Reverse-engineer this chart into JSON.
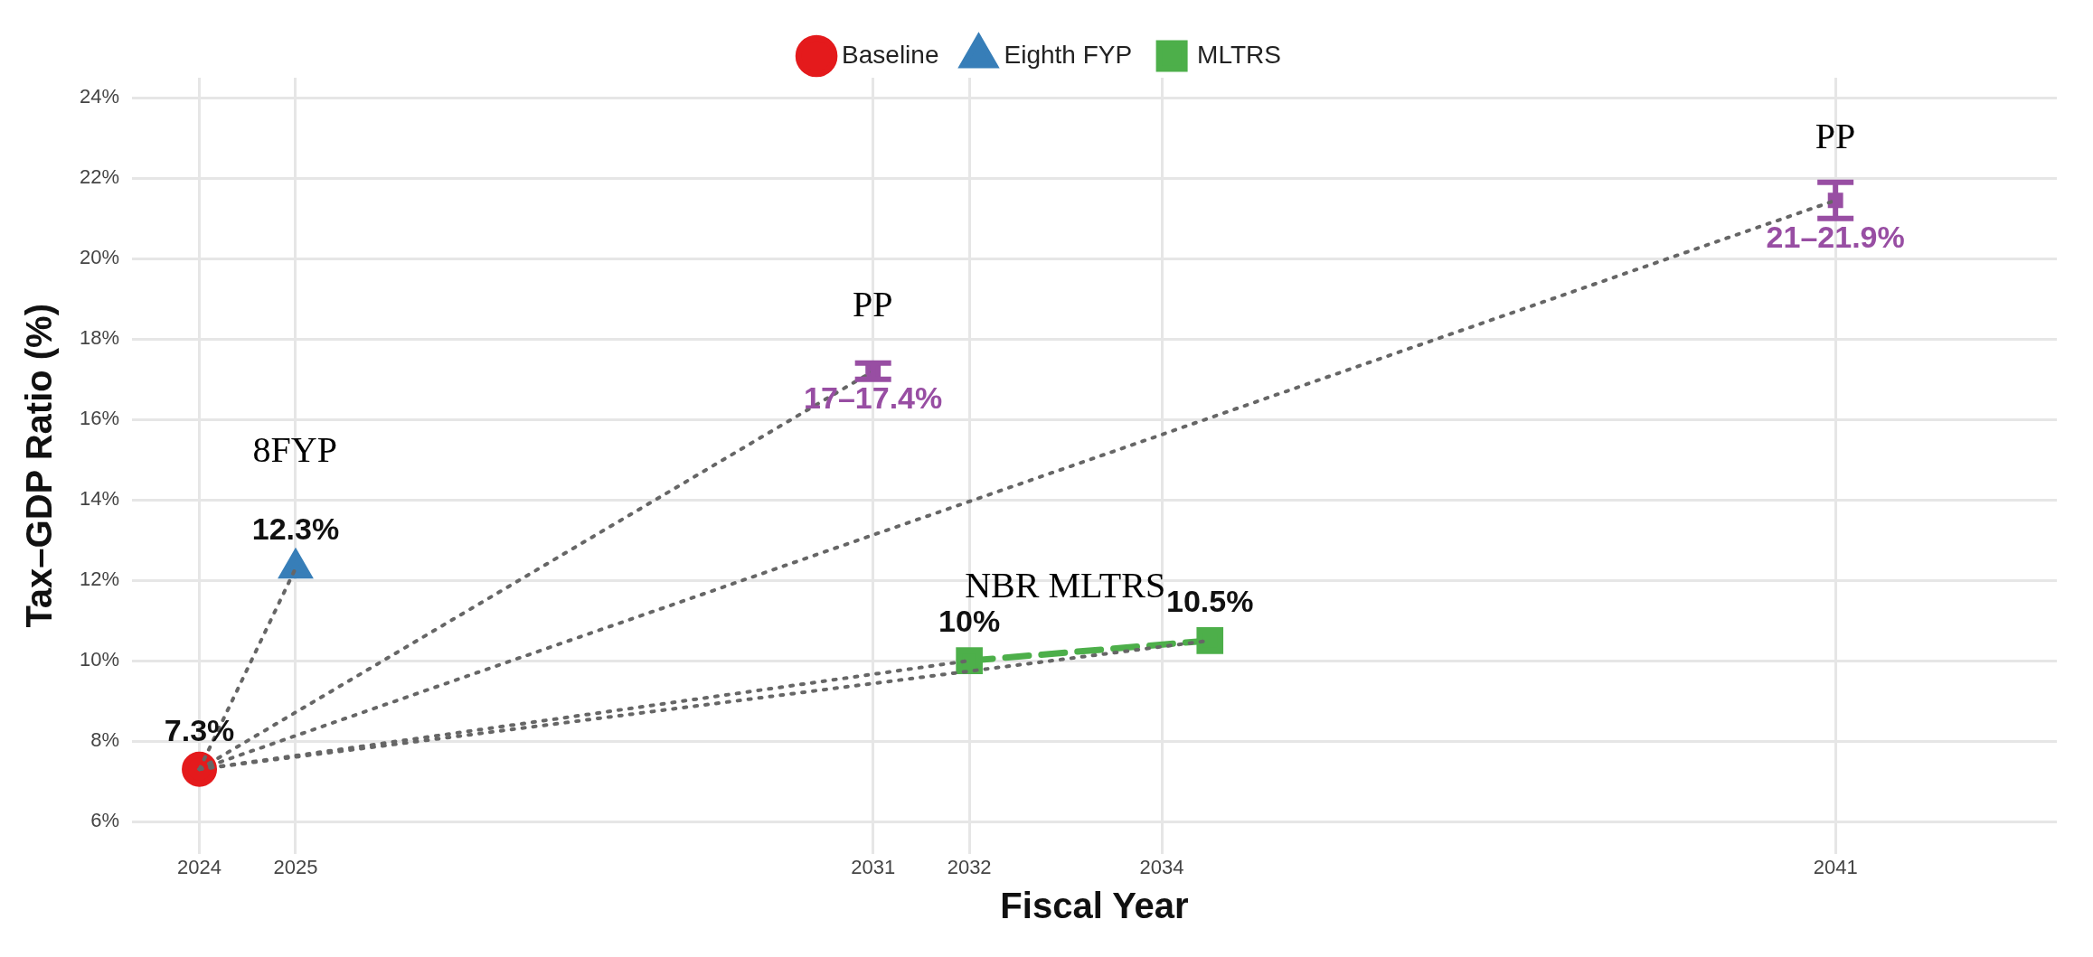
{
  "chart_data": {
    "type": "scatter",
    "xlabel": "Fiscal Year",
    "ylabel": "Tax–GDP Ratio (%)",
    "xlim": [
      2023.3,
      2043.3
    ],
    "xticks": [
      2024,
      2025,
      2031,
      2032,
      2034,
      2041
    ],
    "ylim": [
      5.2,
      24.5
    ],
    "yticks": [
      {
        "value": 6,
        "label": "6%"
      },
      {
        "value": 8,
        "label": "8%"
      },
      {
        "value": 10,
        "label": "10%"
      },
      {
        "value": 12,
        "label": "12%"
      },
      {
        "value": 14,
        "label": "14%"
      },
      {
        "value": 16,
        "label": "16%"
      },
      {
        "value": 18,
        "label": "18%"
      },
      {
        "value": 20,
        "label": "20%"
      },
      {
        "value": 22,
        "label": "22%"
      },
      {
        "value": 24,
        "label": "24%"
      }
    ],
    "grid": true,
    "legend": "top",
    "series": [
      {
        "type": "line",
        "color": "#666666",
        "line_style": "dotted",
        "marker": "none",
        "x": [
          2024,
          2025
        ],
        "values": [
          7.3,
          12.3
        ]
      },
      {
        "type": "line",
        "color": "#666666",
        "line_style": "dotted",
        "marker": "none",
        "x": [
          2024,
          2031
        ],
        "values": [
          7.3,
          17.2
        ]
      },
      {
        "type": "line",
        "color": "#666666",
        "line_style": "dotted",
        "marker": "none",
        "x": [
          2024,
          2032
        ],
        "values": [
          7.3,
          10
        ]
      },
      {
        "type": "line",
        "color": "#666666",
        "line_style": "dotted",
        "marker": "none",
        "x": [
          2024,
          2034.5
        ],
        "values": [
          7.3,
          10.5
        ]
      },
      {
        "type": "line",
        "color": "#666666",
        "line_style": "dotted",
        "marker": "none",
        "x": [
          2024,
          2041
        ],
        "values": [
          7.3,
          21.45
        ]
      },
      {
        "name": "Baseline",
        "type": "scatter",
        "color": "#e41a1c",
        "marker": "circle",
        "x": [
          2024
        ],
        "values": [
          7.3
        ],
        "value_labels": [
          "7.3%"
        ]
      },
      {
        "name": "Eighth FYP",
        "type": "scatter",
        "color": "#377eb8",
        "marker": "triangle",
        "x": [
          2025
        ],
        "values": [
          12.3
        ],
        "value_labels": [
          "12.3%"
        ]
      },
      {
        "name": "MLTRS",
        "type": "line",
        "color": "#4daf4a",
        "marker": "square",
        "line_style": "dashed",
        "x": [
          2032,
          2034.5
        ],
        "values": [
          10,
          10.5
        ],
        "value_labels": [
          "10%",
          "10.5%"
        ]
      },
      {
        "type": "scatter",
        "color": "#984ea3",
        "marker": "square",
        "x": [
          2031,
          2041
        ],
        "values": [
          17.2,
          21.45
        ],
        "errors": [
          [
            17,
            17.4
          ],
          [
            21,
            21.9
          ]
        ],
        "value_labels": [
          "17–17.4%",
          "21–21.9%"
        ]
      }
    ],
    "annotations": [
      "PP",
      "8FYP",
      "NBR MLTRS",
      "PP"
    ]
  }
}
